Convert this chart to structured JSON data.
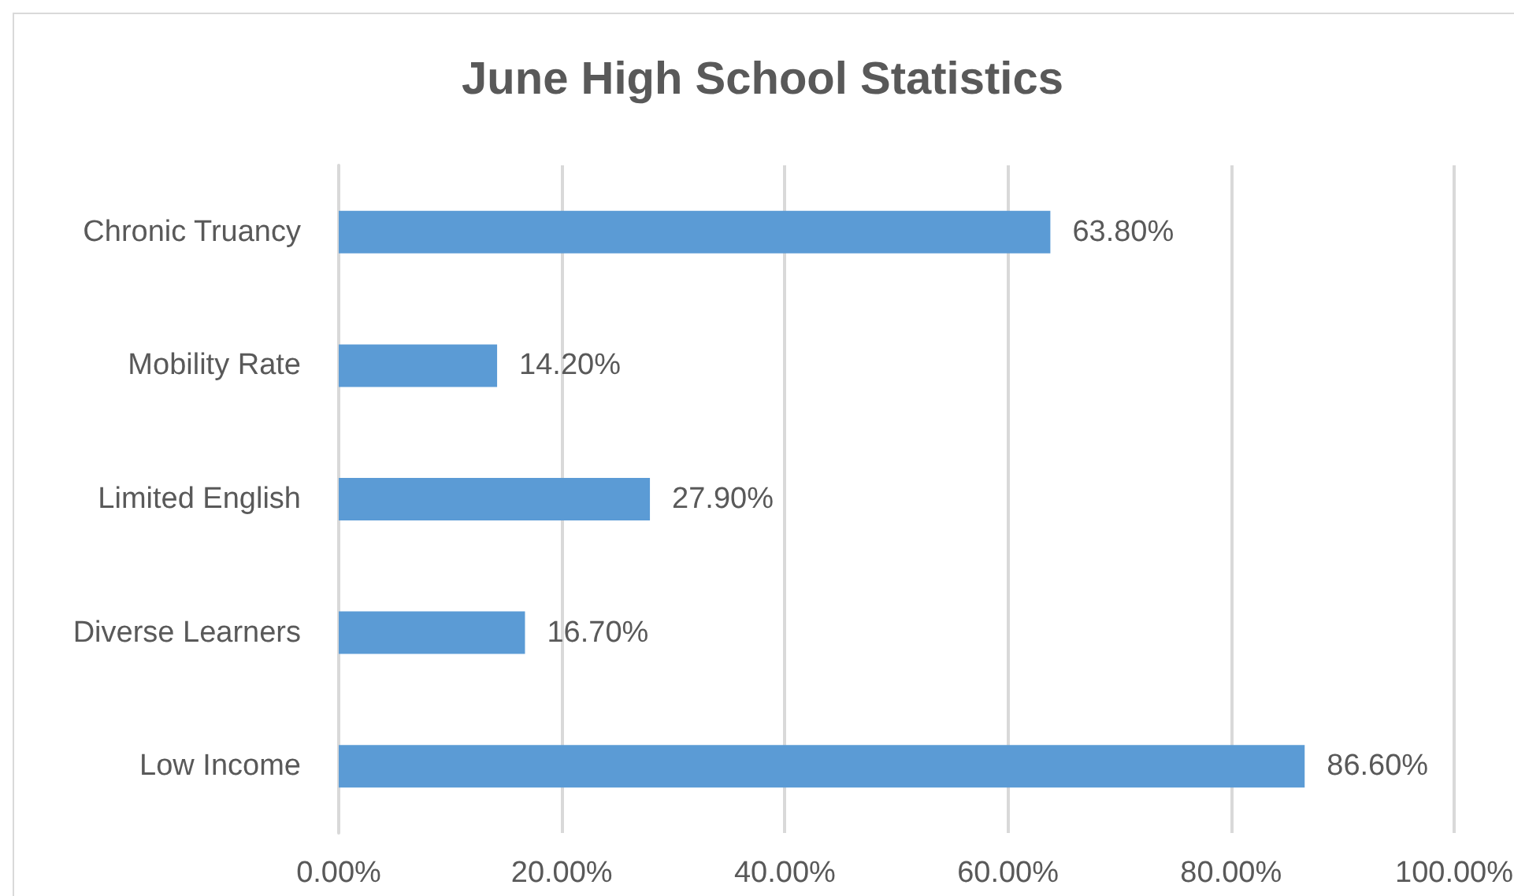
{
  "chart_data": {
    "type": "bar",
    "orientation": "horizontal",
    "title": "June High School Statistics",
    "categories": [
      "Chronic Truancy",
      "Mobility Rate",
      "Limited English",
      "Diverse Learners",
      "Low Income"
    ],
    "values": [
      63.8,
      14.2,
      27.9,
      16.7,
      86.6
    ],
    "value_labels": [
      "63.80%",
      "14.20%",
      "27.90%",
      "16.70%",
      "86.60%"
    ],
    "color": "#5b9bd5",
    "xlim": [
      0,
      100
    ],
    "xticks": [
      {
        "value": 0,
        "label": "0.00%"
      },
      {
        "value": 20,
        "label": "20.00%"
      },
      {
        "value": 40,
        "label": "40.00%"
      },
      {
        "value": 60,
        "label": "60.00%"
      },
      {
        "value": 80,
        "label": "80.00%"
      },
      {
        "value": 100,
        "label": "100.00%"
      }
    ],
    "grid": "x"
  }
}
